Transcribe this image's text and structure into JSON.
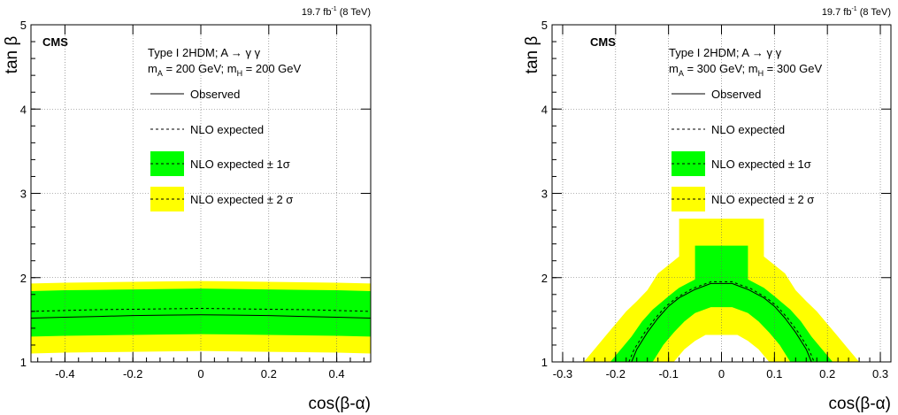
{
  "chart_data": [
    {
      "type": "area",
      "lumi_label": "19.7 fb",
      "lumi_sup": "-1",
      "lumi_energy": " (8 TeV)",
      "cms_label": "CMS",
      "model_label": "Type I 2HDM; A → γ γ",
      "mass_label": {
        "mA_sub": "A",
        "mA_val": " = 200 GeV; m",
        "mH_sub": "H",
        "mH_val": " = 200 GeV"
      },
      "legend": {
        "observed": "Observed",
        "nlo_expected": "NLO expected",
        "one_sigma": "NLO expected ± 1σ",
        "two_sigma": "NLO expected ± 2 σ"
      },
      "xlabel": "cos(β-α)",
      "ylabel": "tan β",
      "xlim": [
        -0.5,
        0.5
      ],
      "ylim": [
        1,
        5
      ],
      "xticks": [
        -0.4,
        -0.2,
        0,
        0.2,
        0.4
      ],
      "xtick_labels": [
        "-0.4",
        "-0.2",
        "0",
        "0.2",
        "0.4"
      ],
      "yticks": [
        1,
        2,
        3,
        4,
        5
      ],
      "ytick_labels": [
        "1",
        "2",
        "3",
        "4",
        "5"
      ],
      "grid": true,
      "colors": {
        "one_sigma": "#00ff00",
        "two_sigma": "#ffff00",
        "line": "#000000"
      },
      "series": {
        "x": [
          -0.5,
          -0.4,
          -0.3,
          -0.2,
          -0.1,
          0.0,
          0.1,
          0.2,
          0.3,
          0.4,
          0.5
        ],
        "observed": [
          1.52,
          1.53,
          1.54,
          1.55,
          1.555,
          1.56,
          1.555,
          1.55,
          1.54,
          1.53,
          1.52
        ],
        "expected": [
          1.6,
          1.61,
          1.62,
          1.625,
          1.63,
          1.635,
          1.63,
          1.625,
          1.62,
          1.61,
          1.6
        ],
        "one_sigma_lo": [
          1.3,
          1.31,
          1.315,
          1.32,
          1.325,
          1.33,
          1.325,
          1.32,
          1.315,
          1.31,
          1.3
        ],
        "one_sigma_hi": [
          1.84,
          1.85,
          1.855,
          1.86,
          1.865,
          1.87,
          1.865,
          1.86,
          1.855,
          1.85,
          1.84
        ],
        "two_sigma_lo": [
          1.1,
          1.11,
          1.115,
          1.12,
          1.125,
          1.13,
          1.125,
          1.12,
          1.115,
          1.11,
          1.1
        ],
        "two_sigma_hi": [
          1.93,
          1.94,
          1.945,
          1.95,
          1.955,
          1.96,
          1.955,
          1.95,
          1.945,
          1.94,
          1.93
        ]
      }
    },
    {
      "type": "area",
      "lumi_label": "19.7 fb",
      "lumi_sup": "-1",
      "lumi_energy": " (8 TeV)",
      "cms_label": "CMS",
      "model_label": "Type I 2HDM; A → γ γ",
      "mass_label": {
        "mA_sub": "A",
        "mA_val": " = 300 GeV; m",
        "mH_sub": "H",
        "mH_val": " = 300 GeV"
      },
      "legend": {
        "observed": "Observed",
        "nlo_expected": "NLO expected",
        "one_sigma": "NLO expected ± 1σ",
        "two_sigma": "NLO expected ± 2 σ"
      },
      "xlabel": "cos(β-α)",
      "ylabel": "tan β",
      "xlim": [
        -0.32,
        0.32
      ],
      "ylim": [
        1,
        5
      ],
      "xticks": [
        -0.3,
        -0.2,
        -0.1,
        0,
        0.1,
        0.2,
        0.3
      ],
      "xtick_labels": [
        "-0.3",
        "-0.2",
        "-0.1",
        "0",
        "0.1",
        "0.2",
        "0.3"
      ],
      "yticks": [
        1,
        2,
        3,
        4,
        5
      ],
      "ytick_labels": [
        "1",
        "2",
        "3",
        "4",
        "5"
      ],
      "grid": true,
      "colors": {
        "one_sigma": "#00ff00",
        "two_sigma": "#ffff00",
        "line": "#000000"
      },
      "series": {
        "two_sigma_outer": [
          [
            -0.26,
            1.0
          ],
          [
            -0.24,
            1.15
          ],
          [
            -0.22,
            1.3
          ],
          [
            -0.2,
            1.45
          ],
          [
            -0.18,
            1.6
          ],
          [
            -0.16,
            1.72
          ],
          [
            -0.14,
            1.85
          ],
          [
            -0.12,
            2.05
          ],
          [
            -0.08,
            2.25
          ],
          [
            -0.08,
            2.7
          ],
          [
            0.08,
            2.7
          ],
          [
            0.08,
            2.25
          ],
          [
            0.12,
            2.05
          ],
          [
            0.14,
            1.85
          ],
          [
            0.16,
            1.72
          ],
          [
            0.18,
            1.6
          ],
          [
            0.2,
            1.45
          ],
          [
            0.22,
            1.3
          ],
          [
            0.24,
            1.15
          ],
          [
            0.26,
            1.0
          ]
        ],
        "one_sigma_outer": [
          [
            -0.21,
            1.0
          ],
          [
            -0.19,
            1.15
          ],
          [
            -0.17,
            1.3
          ],
          [
            -0.15,
            1.48
          ],
          [
            -0.13,
            1.62
          ],
          [
            -0.1,
            1.78
          ],
          [
            -0.08,
            1.88
          ],
          [
            -0.05,
            1.98
          ],
          [
            -0.05,
            2.38
          ],
          [
            0.05,
            2.38
          ],
          [
            0.05,
            1.98
          ],
          [
            0.08,
            1.88
          ],
          [
            0.1,
            1.78
          ],
          [
            0.13,
            1.62
          ],
          [
            0.15,
            1.48
          ],
          [
            0.17,
            1.3
          ],
          [
            0.19,
            1.15
          ],
          [
            0.21,
            1.0
          ]
        ],
        "one_sigma_inner": [
          [
            -0.13,
            1.0
          ],
          [
            -0.11,
            1.2
          ],
          [
            -0.09,
            1.35
          ],
          [
            -0.07,
            1.48
          ],
          [
            -0.05,
            1.58
          ],
          [
            -0.02,
            1.65
          ],
          [
            0.02,
            1.65
          ],
          [
            0.05,
            1.58
          ],
          [
            0.07,
            1.48
          ],
          [
            0.09,
            1.35
          ],
          [
            0.11,
            1.2
          ],
          [
            0.13,
            1.0
          ]
        ],
        "two_sigma_inner": [
          [
            -0.09,
            1.0
          ],
          [
            -0.07,
            1.15
          ],
          [
            -0.05,
            1.25
          ],
          [
            -0.03,
            1.32
          ],
          [
            0.03,
            1.32
          ],
          [
            0.05,
            1.25
          ],
          [
            0.07,
            1.15
          ],
          [
            0.09,
            1.0
          ]
        ],
        "observed": [
          [
            -0.17,
            1.0
          ],
          [
            -0.16,
            1.15
          ],
          [
            -0.14,
            1.35
          ],
          [
            -0.12,
            1.52
          ],
          [
            -0.1,
            1.66
          ],
          [
            -0.08,
            1.76
          ],
          [
            -0.05,
            1.86
          ],
          [
            -0.02,
            1.93
          ],
          [
            0.02,
            1.93
          ],
          [
            0.05,
            1.86
          ],
          [
            0.08,
            1.76
          ],
          [
            0.1,
            1.66
          ],
          [
            0.12,
            1.52
          ],
          [
            0.14,
            1.35
          ],
          [
            0.16,
            1.15
          ],
          [
            0.17,
            1.0
          ]
        ],
        "expected": [
          [
            -0.175,
            1.0
          ],
          [
            -0.165,
            1.15
          ],
          [
            -0.145,
            1.35
          ],
          [
            -0.125,
            1.52
          ],
          [
            -0.105,
            1.66
          ],
          [
            -0.085,
            1.76
          ],
          [
            -0.055,
            1.87
          ],
          [
            -0.02,
            1.95
          ],
          [
            0.02,
            1.95
          ],
          [
            0.055,
            1.87
          ],
          [
            0.085,
            1.76
          ],
          [
            0.105,
            1.66
          ],
          [
            0.125,
            1.52
          ],
          [
            0.145,
            1.35
          ],
          [
            0.165,
            1.15
          ],
          [
            0.175,
            1.0
          ]
        ]
      }
    }
  ]
}
